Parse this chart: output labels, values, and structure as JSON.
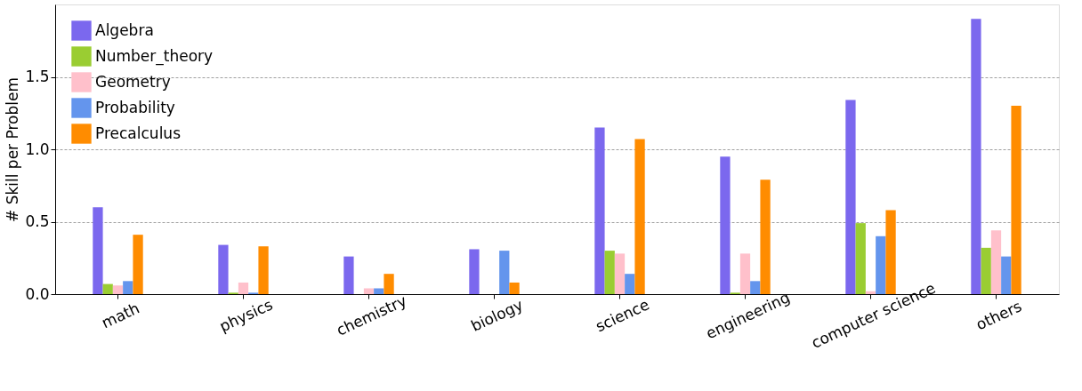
{
  "chart_data": {
    "type": "bar",
    "ylabel": "# Skill per Problem",
    "categories": [
      "math",
      "physics",
      "chemistry",
      "biology",
      "science",
      "engineering",
      "computer science",
      "others"
    ],
    "series": [
      {
        "name": "Algebra",
        "color": "#7b68ee",
        "values": [
          0.6,
          0.34,
          0.26,
          0.31,
          1.15,
          0.95,
          1.34,
          1.9
        ]
      },
      {
        "name": "Number_theory",
        "color": "#9acd32",
        "values": [
          0.07,
          0.01,
          0,
          0,
          0.3,
          0.01,
          0.49,
          0.32
        ]
      },
      {
        "name": "Geometry",
        "color": "#ffc0cb",
        "values": [
          0.06,
          0.08,
          0.04,
          0,
          0.28,
          0.28,
          0.02,
          0.44
        ]
      },
      {
        "name": "Probability",
        "color": "#6495ed",
        "values": [
          0.09,
          0.01,
          0.04,
          0.3,
          0.14,
          0.09,
          0.4,
          0.26
        ]
      },
      {
        "name": "Precalculus",
        "color": "#ff8c00",
        "values": [
          0.41,
          0.33,
          0.14,
          0.08,
          1.07,
          0.79,
          0.58,
          1.3
        ]
      }
    ],
    "ylim": [
      0,
      2.0
    ],
    "yticks": [
      {
        "value": 0,
        "label": "0.0"
      },
      {
        "value": 0.5,
        "label": "0.5"
      },
      {
        "value": 1.0,
        "label": "1.0"
      },
      {
        "value": 1.5,
        "label": "1.5"
      }
    ],
    "grid": "y",
    "legend": "top left"
  }
}
